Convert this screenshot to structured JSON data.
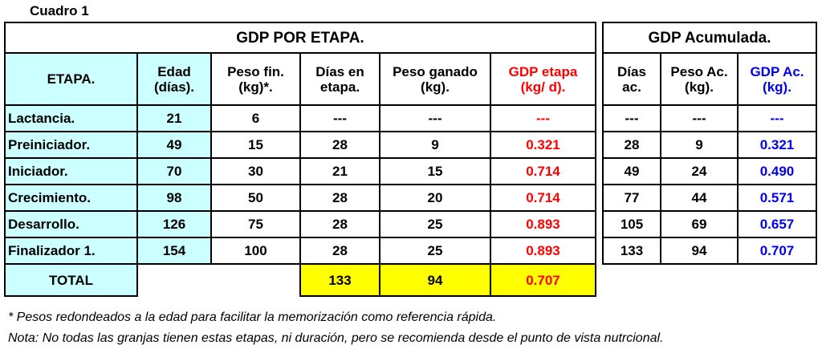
{
  "caption": "Cuadro 1",
  "table1": {
    "title": "GDP POR ETAPA.",
    "headers": [
      [
        "ETAPA."
      ],
      [
        "Edad",
        "(días)."
      ],
      [
        "Peso fin.",
        "(kg)*."
      ],
      [
        "Días en",
        "etapa."
      ],
      [
        "Peso ganado",
        "(kg)."
      ],
      [
        "GDP etapa",
        "(kg/ d)."
      ]
    ],
    "rows": [
      [
        "Lactancia.",
        "21",
        "6",
        "---",
        "---",
        "---"
      ],
      [
        "Preiniciador.",
        "49",
        "15",
        "28",
        "9",
        "0.321"
      ],
      [
        "Iniciador.",
        "70",
        "30",
        "21",
        "15",
        "0.714"
      ],
      [
        "Crecimiento.",
        "98",
        "50",
        "28",
        "20",
        "0.714"
      ],
      [
        "Desarrollo.",
        "126",
        "75",
        "28",
        "25",
        "0.893"
      ],
      [
        "Finalizador 1.",
        "154",
        "100",
        "28",
        "25",
        "0.893"
      ]
    ],
    "total": {
      "label": "TOTAL",
      "dias": "133",
      "peso": "94",
      "gdp": "0.707"
    }
  },
  "table2": {
    "title": "GDP Acumulada.",
    "headers": [
      [
        "Días",
        "ac."
      ],
      [
        "Peso Ac.",
        "(kg)."
      ],
      [
        "GDP Ac.",
        "(kg)."
      ]
    ],
    "rows": [
      [
        "---",
        "---",
        "---"
      ],
      [
        "28",
        "9",
        "0.321"
      ],
      [
        "49",
        "24",
        "0.490"
      ],
      [
        "77",
        "44",
        "0.571"
      ],
      [
        "105",
        "69",
        "0.657"
      ],
      [
        "133",
        "94",
        "0.707"
      ]
    ]
  },
  "notes": [
    "* Pesos redondeados a la edad para facilitar la memorización como referencia rápida.",
    "Nota: No todas las granjas tienen estas etapas, ni duración, pero se recomienda desde el punto de vista nutrcional."
  ],
  "colors": {
    "red": "#ff0000",
    "blue": "#0000ee",
    "cyan": "#ccffff",
    "yellow": "#ffff00"
  }
}
